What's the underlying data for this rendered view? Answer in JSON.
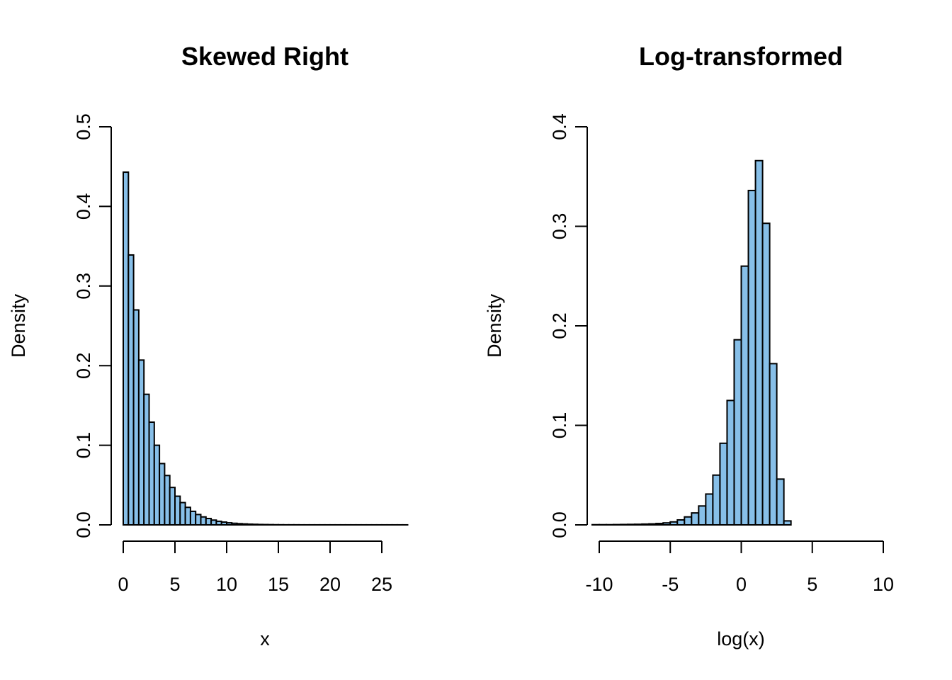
{
  "chart_data": [
    {
      "type": "bar",
      "title": "Skewed Right",
      "xlabel": "x",
      "ylabel": "Density",
      "xlim": [
        0,
        27.5
      ],
      "ylim": [
        0,
        0.5
      ],
      "x_ticks": [
        "0",
        "5",
        "10",
        "15",
        "20",
        "25"
      ],
      "y_ticks": [
        "0.0",
        "0.1",
        "0.2",
        "0.3",
        "0.4",
        "0.5"
      ],
      "bar_color": "#87bfe8",
      "bin_width": 0.5,
      "bins_start": 0,
      "values": [
        0.443,
        0.339,
        0.27,
        0.207,
        0.164,
        0.129,
        0.1,
        0.077,
        0.062,
        0.047,
        0.036,
        0.028,
        0.022,
        0.017,
        0.013,
        0.01,
        0.008,
        0.006,
        0.0045,
        0.0035,
        0.0026,
        0.002,
        0.0015,
        0.0012,
        0.0009,
        0.0007,
        0.0005,
        0.0004,
        0.0003,
        0.0002,
        0.00015,
        0.0001,
        0.0001,
        0.0001,
        5e-05,
        5e-05,
        5e-05,
        5e-05,
        5e-05,
        5e-05,
        5e-05,
        5e-05,
        5e-05,
        5e-05,
        5e-05,
        5e-05,
        5e-05,
        5e-05,
        5e-05,
        5e-05,
        5e-05,
        5e-05,
        5e-05,
        5e-05,
        5e-05
      ]
    },
    {
      "type": "bar",
      "title": "Log-transformed",
      "xlabel": "log(x)",
      "ylabel": "Density",
      "xlim": [
        -10,
        10
      ],
      "ylim": [
        0,
        0.4
      ],
      "x_ticks": [
        "-10",
        "-5",
        "0",
        "5",
        "10"
      ],
      "y_ticks": [
        "0.0",
        "0.1",
        "0.2",
        "0.3",
        "0.4"
      ],
      "bar_color": "#87bfe8",
      "bin_width": 0.5,
      "bins_start": -10.5,
      "values": [
        0.0002,
        0.0002,
        0.0002,
        0.0003,
        0.0004,
        0.0005,
        0.0006,
        0.0008,
        0.001,
        0.0014,
        0.002,
        0.003,
        0.005,
        0.008,
        0.012,
        0.019,
        0.031,
        0.05,
        0.082,
        0.125,
        0.186,
        0.26,
        0.336,
        0.366,
        0.303,
        0.162,
        0.046,
        0.004
      ]
    }
  ]
}
